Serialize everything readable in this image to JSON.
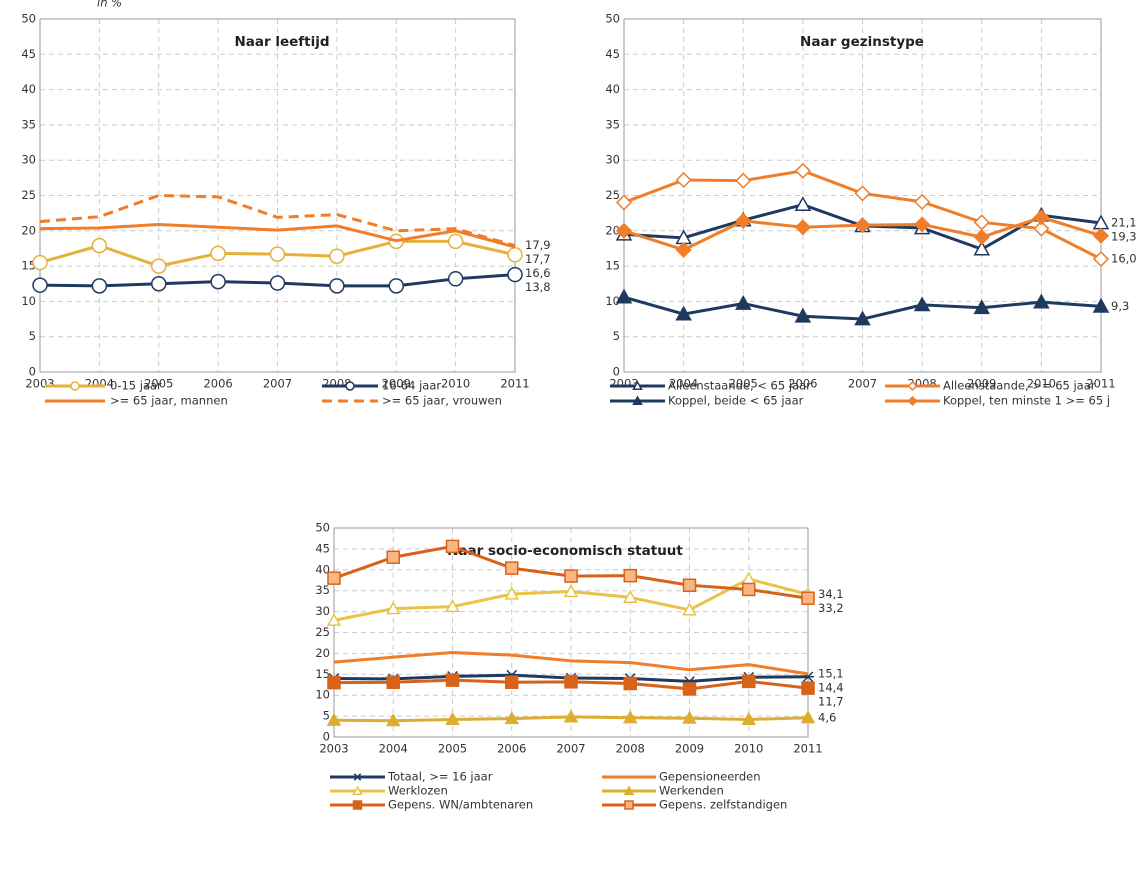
{
  "chart_data": [
    {
      "type": "line",
      "title": "Naar leeftijd",
      "ylabel": "in %",
      "categories": [
        "2003",
        "2004",
        "2005",
        "2006",
        "2007",
        "2008",
        "2009",
        "2010",
        "2011"
      ],
      "ylim": [
        0,
        50
      ],
      "yticks": [
        0,
        5,
        10,
        15,
        20,
        25,
        30,
        35,
        40,
        45,
        50
      ],
      "grid": true,
      "legend_columns": 2,
      "series": [
        {
          "name": "0-15 jaar",
          "color": "#E4B23C",
          "marker": "circle-open",
          "values": [
            15.5,
            17.9,
            15.0,
            16.8,
            16.7,
            16.4,
            18.5,
            18.5,
            16.6
          ],
          "value_labels": [
            null,
            null,
            null,
            null,
            null,
            null,
            null,
            null,
            "16,6"
          ]
        },
        {
          "name": "16-64 jaar",
          "color": "#1F3A5F",
          "marker": "circle-open",
          "values": [
            12.3,
            12.2,
            12.5,
            12.8,
            12.6,
            12.2,
            12.2,
            13.2,
            13.8
          ],
          "value_labels": [
            null,
            null,
            null,
            null,
            null,
            null,
            null,
            null,
            "13,8"
          ]
        },
        {
          "name": ">= 65 jaar, mannen",
          "color": "#F07D2A",
          "marker": "none",
          "values": [
            20.3,
            20.4,
            20.9,
            20.5,
            20.1,
            20.7,
            18.6,
            20.0,
            17.7
          ],
          "value_labels": [
            null,
            null,
            null,
            null,
            null,
            null,
            null,
            null,
            "17,7"
          ]
        },
        {
          "name": ">= 65 jaar, vrouwen",
          "color": "#F07D2A",
          "marker": "none",
          "dashed": true,
          "values": [
            21.3,
            22.0,
            25.0,
            24.8,
            21.9,
            22.3,
            20.0,
            20.3,
            17.9
          ],
          "value_labels": [
            null,
            null,
            null,
            null,
            null,
            null,
            null,
            null,
            "17,9"
          ]
        }
      ]
    },
    {
      "type": "line",
      "title": "Naar gezinstype",
      "categories": [
        "2003",
        "2004",
        "2005",
        "2006",
        "2007",
        "2008",
        "2009",
        "2010",
        "2011"
      ],
      "ylim": [
        0,
        50
      ],
      "yticks": [
        0,
        5,
        10,
        15,
        20,
        25,
        30,
        35,
        40,
        45,
        50
      ],
      "grid": true,
      "legend_columns": 2,
      "series": [
        {
          "name": "Alleenstaande, < 65 jaar",
          "color": "#1F3A5F",
          "marker": "triangle-open",
          "values": [
            19.5,
            19.0,
            21.5,
            23.7,
            20.7,
            20.4,
            17.4,
            22.2,
            21.1
          ],
          "value_labels": [
            null,
            null,
            null,
            null,
            null,
            null,
            null,
            null,
            "21,1"
          ]
        },
        {
          "name": "Alleenstaande, >= 65 jaar",
          "color": "#F07D2A",
          "marker": "diamond-open",
          "values": [
            24.0,
            27.2,
            27.1,
            28.5,
            25.3,
            24.1,
            21.2,
            20.3,
            16.0
          ],
          "value_labels": [
            null,
            null,
            null,
            null,
            null,
            null,
            null,
            null,
            "16,0"
          ]
        },
        {
          "name": "Koppel, beide < 65 jaar",
          "color": "#1F3A5F",
          "marker": "triangle",
          "values": [
            10.6,
            8.2,
            9.7,
            7.9,
            7.5,
            9.5,
            9.1,
            9.9,
            9.3
          ],
          "value_labels": [
            null,
            null,
            null,
            null,
            null,
            null,
            null,
            null,
            "9,3"
          ]
        },
        {
          "name": "Koppel, ten minste 1 >= 65 j",
          "color": "#F07D2A",
          "marker": "diamond",
          "values": [
            20.0,
            17.3,
            21.4,
            20.5,
            20.8,
            20.9,
            19.1,
            21.9,
            19.3
          ],
          "value_labels": [
            null,
            null,
            null,
            null,
            null,
            null,
            null,
            null,
            "19,3"
          ]
        }
      ]
    },
    {
      "type": "line",
      "title": "Naar socio-economisch statuut",
      "categories": [
        "2003",
        "2004",
        "2005",
        "2006",
        "2007",
        "2008",
        "2009",
        "2010",
        "2011"
      ],
      "ylim": [
        0,
        50
      ],
      "yticks": [
        0,
        5,
        10,
        15,
        20,
        25,
        30,
        35,
        40,
        45,
        50
      ],
      "grid": true,
      "legend_columns": 2,
      "series": [
        {
          "name": "Totaal, >= 16 jaar",
          "color": "#1F3A5F",
          "marker": "x-star",
          "values": [
            14.0,
            13.9,
            14.5,
            14.8,
            14.1,
            14.0,
            13.3,
            14.3,
            14.4
          ],
          "value_labels": [
            null,
            null,
            null,
            null,
            null,
            null,
            null,
            null,
            "14,4"
          ]
        },
        {
          "name": "Gepensioneerden",
          "color": "#F07D2A",
          "marker": "none",
          "values": [
            17.9,
            19.1,
            20.2,
            19.6,
            18.2,
            17.8,
            16.1,
            17.3,
            15.1
          ],
          "value_labels": [
            null,
            null,
            null,
            null,
            null,
            null,
            null,
            null,
            "15,1"
          ]
        },
        {
          "name": "Werklozen",
          "color": "#E9C247",
          "marker": "triangle-open",
          "values": [
            27.9,
            30.7,
            31.2,
            34.2,
            34.8,
            33.4,
            30.4,
            37.8,
            34.1
          ],
          "value_labels": [
            null,
            null,
            null,
            null,
            null,
            null,
            null,
            null,
            "34,1"
          ]
        },
        {
          "name": "Werkenden",
          "color": "#DDAE2E",
          "marker": "triangle",
          "values": [
            4.0,
            3.9,
            4.2,
            4.4,
            4.8,
            4.6,
            4.5,
            4.2,
            4.6
          ],
          "value_labels": [
            null,
            null,
            null,
            null,
            null,
            null,
            null,
            null,
            "4,6"
          ]
        },
        {
          "name": "Gepens. WN/ambtenaren",
          "color": "#D9621B",
          "marker": "square",
          "values": [
            13.0,
            13.1,
            13.6,
            13.1,
            13.2,
            12.8,
            11.5,
            13.3,
            11.7
          ],
          "value_labels": [
            null,
            null,
            null,
            null,
            null,
            null,
            null,
            null,
            "11,7"
          ]
        },
        {
          "name": "Gepens. zelfstandigen",
          "color": "#D9621B",
          "marker": "square",
          "marker_fill": "#F7B683",
          "values": [
            38.0,
            43.0,
            45.6,
            40.4,
            38.5,
            38.6,
            36.3,
            35.3,
            33.2
          ],
          "value_labels": [
            null,
            null,
            null,
            null,
            null,
            null,
            null,
            null,
            "33,2"
          ]
        }
      ]
    }
  ]
}
